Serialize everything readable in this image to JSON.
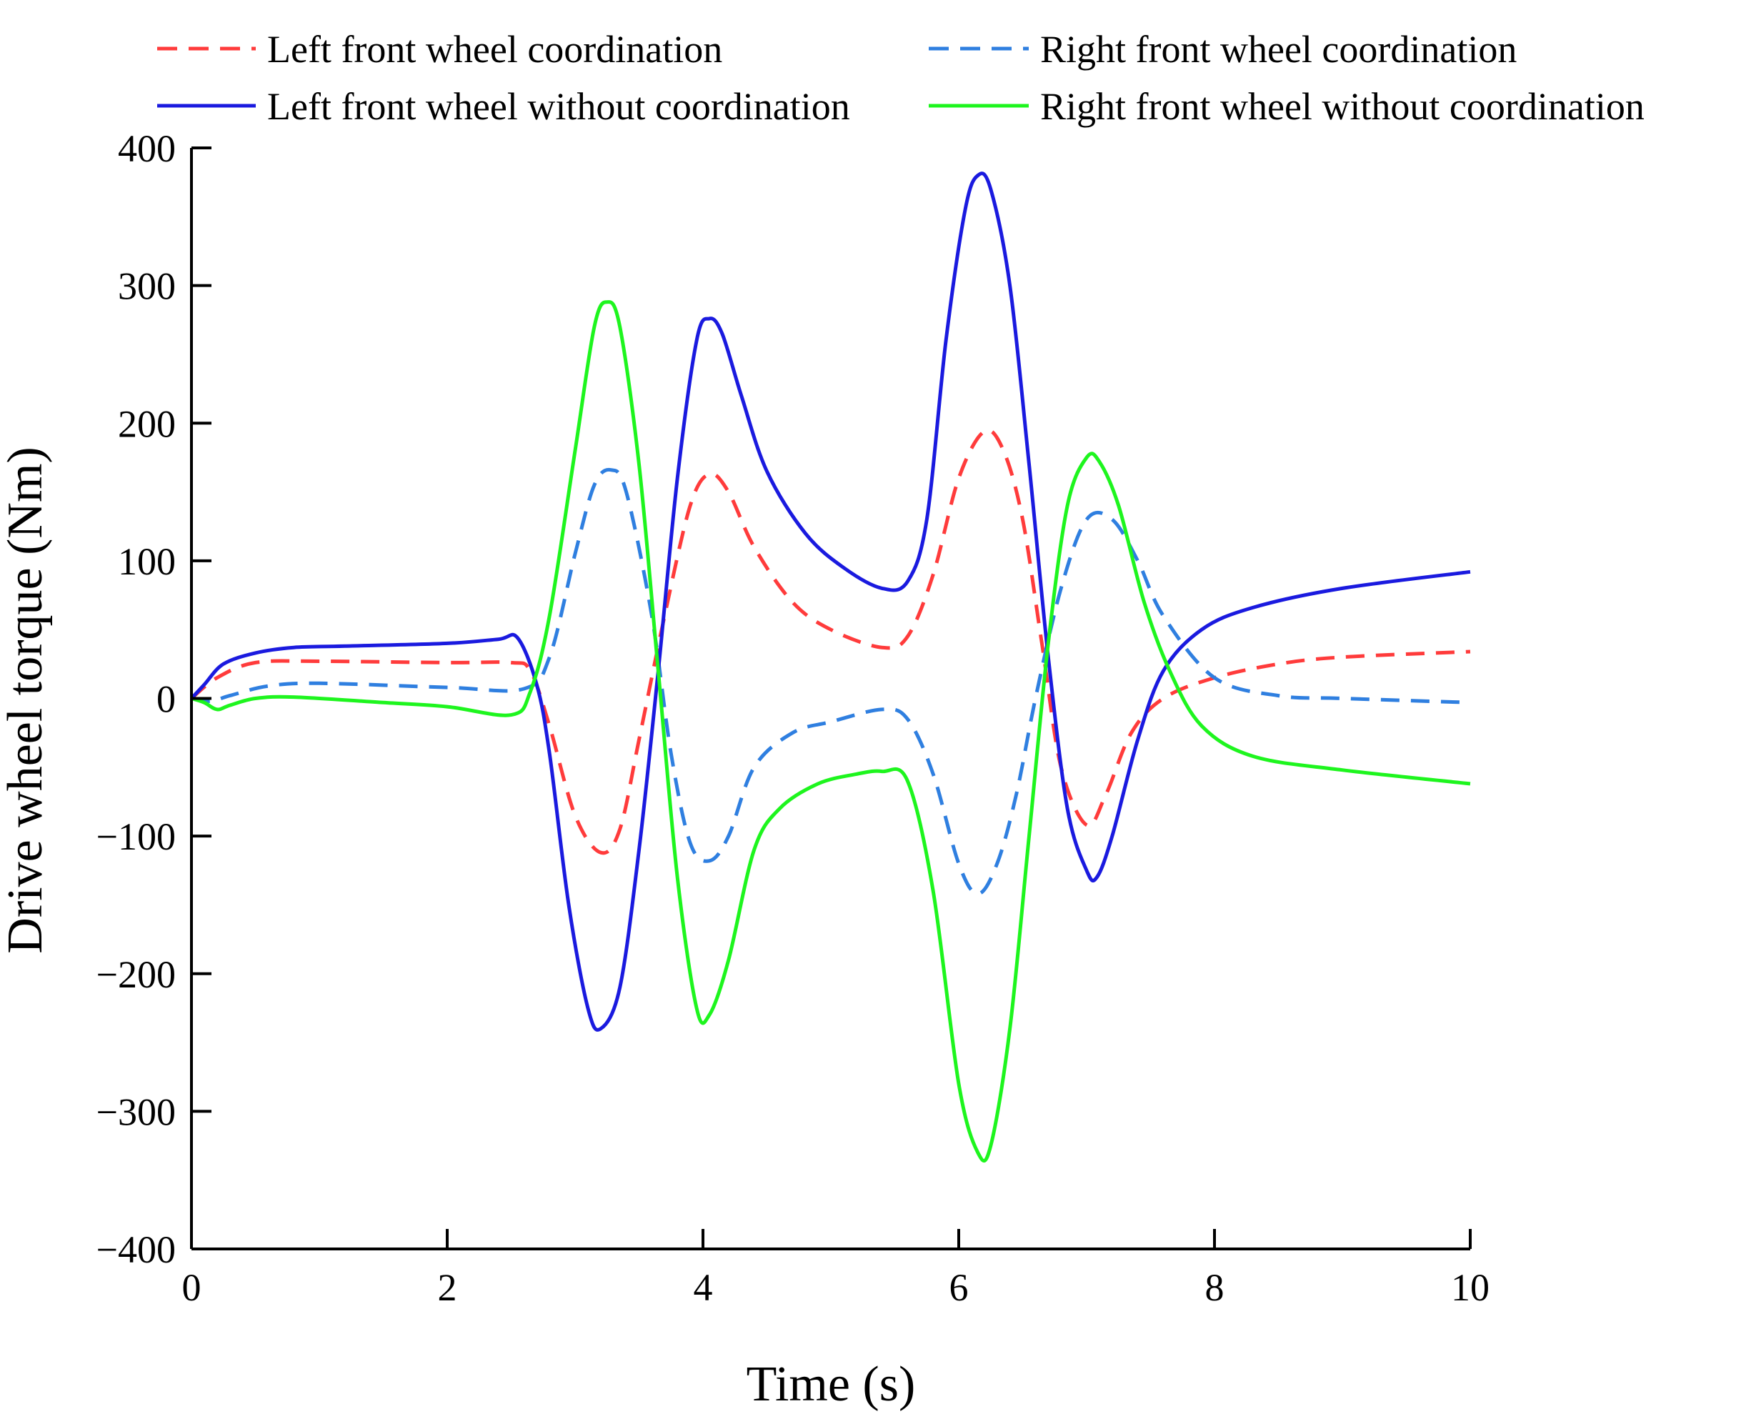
{
  "chart_data": {
    "type": "line",
    "title": "",
    "xlabel": "Time (s)",
    "ylabel": "Drive wheel torque (Nm)",
    "xlim": [
      0,
      10
    ],
    "ylim": [
      -400,
      400
    ],
    "xticks": [
      0,
      2,
      4,
      6,
      8,
      10
    ],
    "yticks": [
      -400,
      -300,
      -200,
      -100,
      0,
      100,
      200,
      300,
      400
    ],
    "xtick_labels": [
      "0",
      "2",
      "4",
      "6",
      "8",
      "10"
    ],
    "ytick_labels": [
      "−400",
      "−300",
      "−200",
      "−100",
      "0",
      "100",
      "200",
      "300",
      "400"
    ],
    "grid": false,
    "legend_position": "top",
    "series": [
      {
        "name": "Left front wheel coordination",
        "color": "#ff3b3b",
        "style": "dashed",
        "points": [
          [
            0,
            0
          ],
          [
            0.2,
            15
          ],
          [
            0.5,
            26
          ],
          [
            1,
            27
          ],
          [
            2,
            26
          ],
          [
            2.5,
            26
          ],
          [
            2.65,
            20
          ],
          [
            2.8,
            -20
          ],
          [
            3,
            -85
          ],
          [
            3.2,
            -112
          ],
          [
            3.35,
            -95
          ],
          [
            3.5,
            -30
          ],
          [
            3.7,
            60
          ],
          [
            3.9,
            140
          ],
          [
            4.05,
            163
          ],
          [
            4.2,
            150
          ],
          [
            4.4,
            110
          ],
          [
            4.7,
            70
          ],
          [
            5,
            50
          ],
          [
            5.4,
            37
          ],
          [
            5.6,
            45
          ],
          [
            5.8,
            90
          ],
          [
            6,
            160
          ],
          [
            6.2,
            194
          ],
          [
            6.35,
            180
          ],
          [
            6.5,
            130
          ],
          [
            6.65,
            40
          ],
          [
            6.8,
            -50
          ],
          [
            7,
            -92
          ],
          [
            7.15,
            -70
          ],
          [
            7.35,
            -25
          ],
          [
            7.6,
            0
          ],
          [
            8,
            15
          ],
          [
            8.5,
            25
          ],
          [
            9,
            30
          ],
          [
            10,
            34
          ]
        ]
      },
      {
        "name": "Right front wheel coordination",
        "color": "#2f7fe0",
        "style": "dashed",
        "points": [
          [
            0,
            0
          ],
          [
            0.15,
            -2
          ],
          [
            0.3,
            2
          ],
          [
            0.6,
            9
          ],
          [
            1,
            11
          ],
          [
            2,
            8
          ],
          [
            2.6,
            7
          ],
          [
            2.8,
            30
          ],
          [
            3,
            105
          ],
          [
            3.15,
            155
          ],
          [
            3.28,
            166
          ],
          [
            3.4,
            150
          ],
          [
            3.6,
            60
          ],
          [
            3.75,
            -40
          ],
          [
            3.9,
            -105
          ],
          [
            4.05,
            -118
          ],
          [
            4.2,
            -100
          ],
          [
            4.4,
            -50
          ],
          [
            4.7,
            -25
          ],
          [
            5,
            -17
          ],
          [
            5.4,
            -8
          ],
          [
            5.6,
            -15
          ],
          [
            5.8,
            -55
          ],
          [
            6,
            -120
          ],
          [
            6.15,
            -142
          ],
          [
            6.3,
            -120
          ],
          [
            6.45,
            -70
          ],
          [
            6.6,
            0
          ],
          [
            6.8,
            80
          ],
          [
            7,
            130
          ],
          [
            7.2,
            130
          ],
          [
            7.4,
            100
          ],
          [
            7.6,
            60
          ],
          [
            8,
            15
          ],
          [
            8.5,
            2
          ],
          [
            9,
            0
          ],
          [
            10,
            -3
          ]
        ]
      },
      {
        "name": "Left front wheel without coordination",
        "color": "#1a1adf",
        "style": "solid",
        "points": [
          [
            0,
            0
          ],
          [
            0.1,
            10
          ],
          [
            0.25,
            25
          ],
          [
            0.5,
            33
          ],
          [
            0.8,
            37
          ],
          [
            1.2,
            38
          ],
          [
            2,
            40
          ],
          [
            2.4,
            43
          ],
          [
            2.55,
            44
          ],
          [
            2.7,
            10
          ],
          [
            2.8,
            -40
          ],
          [
            2.95,
            -150
          ],
          [
            3.1,
            -225
          ],
          [
            3.2,
            -240
          ],
          [
            3.35,
            -210
          ],
          [
            3.5,
            -110
          ],
          [
            3.65,
            20
          ],
          [
            3.8,
            160
          ],
          [
            3.95,
            260
          ],
          [
            4.05,
            276
          ],
          [
            4.15,
            265
          ],
          [
            4.3,
            220
          ],
          [
            4.5,
            165
          ],
          [
            4.8,
            120
          ],
          [
            5.1,
            95
          ],
          [
            5.4,
            80
          ],
          [
            5.6,
            85
          ],
          [
            5.75,
            130
          ],
          [
            5.9,
            260
          ],
          [
            6.05,
            355
          ],
          [
            6.15,
            380
          ],
          [
            6.25,
            370
          ],
          [
            6.4,
            300
          ],
          [
            6.55,
            170
          ],
          [
            6.7,
            30
          ],
          [
            6.85,
            -80
          ],
          [
            7,
            -125
          ],
          [
            7.08,
            -130
          ],
          [
            7.2,
            -100
          ],
          [
            7.4,
            -30
          ],
          [
            7.6,
            20
          ],
          [
            7.9,
            50
          ],
          [
            8.3,
            66
          ],
          [
            9,
            80
          ],
          [
            10,
            92
          ]
        ]
      },
      {
        "name": "Right front wheel without coordination",
        "color": "#1ef51e",
        "style": "solid",
        "points": [
          [
            0,
            0
          ],
          [
            0.1,
            -3
          ],
          [
            0.2,
            -8
          ],
          [
            0.3,
            -5
          ],
          [
            0.5,
            0
          ],
          [
            0.8,
            1
          ],
          [
            1.5,
            -3
          ],
          [
            2,
            -6
          ],
          [
            2.5,
            -12
          ],
          [
            2.65,
            5
          ],
          [
            2.8,
            60
          ],
          [
            3,
            180
          ],
          [
            3.15,
            270
          ],
          [
            3.25,
            288
          ],
          [
            3.35,
            270
          ],
          [
            3.5,
            170
          ],
          [
            3.65,
            20
          ],
          [
            3.8,
            -130
          ],
          [
            3.95,
            -225
          ],
          [
            4.05,
            -230
          ],
          [
            4.2,
            -190
          ],
          [
            4.4,
            -110
          ],
          [
            4.6,
            -80
          ],
          [
            4.9,
            -62
          ],
          [
            5.2,
            -55
          ],
          [
            5.4,
            -53
          ],
          [
            5.6,
            -60
          ],
          [
            5.8,
            -140
          ],
          [
            6,
            -280
          ],
          [
            6.15,
            -330
          ],
          [
            6.25,
            -325
          ],
          [
            6.4,
            -240
          ],
          [
            6.55,
            -100
          ],
          [
            6.7,
            40
          ],
          [
            6.85,
            140
          ],
          [
            7,
            175
          ],
          [
            7.1,
            172
          ],
          [
            7.25,
            140
          ],
          [
            7.45,
            70
          ],
          [
            7.65,
            20
          ],
          [
            7.9,
            -20
          ],
          [
            8.3,
            -42
          ],
          [
            9,
            -52
          ],
          [
            10,
            -62
          ]
        ]
      }
    ]
  }
}
